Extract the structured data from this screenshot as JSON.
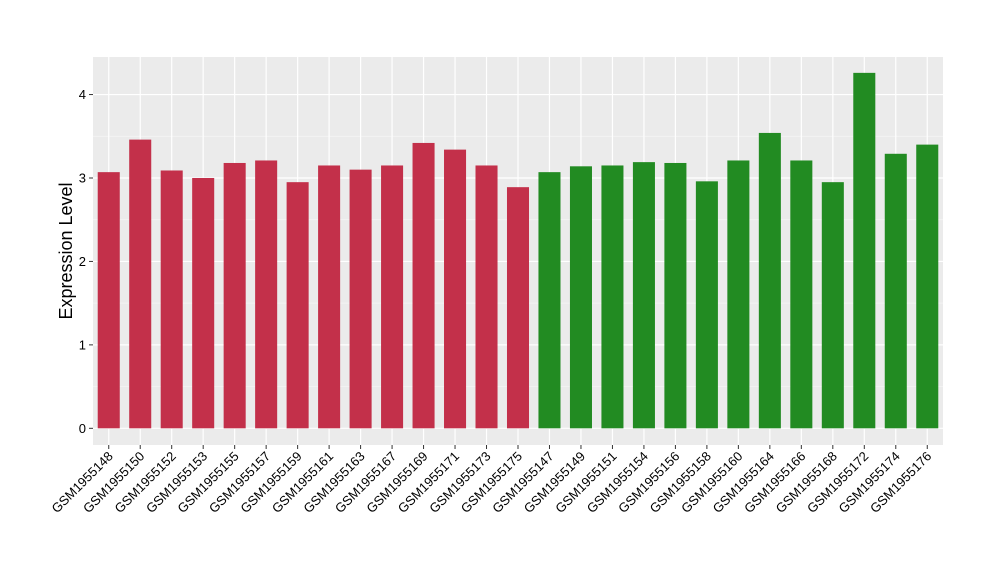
{
  "chart_data": {
    "type": "bar",
    "title": "",
    "xlabel": "",
    "ylabel": "Expression Level",
    "ylim": [
      -0.2,
      4.45
    ],
    "yticks": [
      0,
      1,
      2,
      3,
      4
    ],
    "grid": true,
    "categories": [
      "GSM1955148",
      "GSM1955150",
      "GSM1955152",
      "GSM1955153",
      "GSM1955155",
      "GSM1955157",
      "GSM1955159",
      "GSM1955161",
      "GSM1955163",
      "GSM1955167",
      "GSM1955169",
      "GSM1955171",
      "GSM1955173",
      "GSM1955175",
      "GSM1955147",
      "GSM1955149",
      "GSM1955151",
      "GSM1955154",
      "GSM1955156",
      "GSM1955158",
      "GSM1955160",
      "GSM1955164",
      "GSM1955166",
      "GSM1955168",
      "GSM1955172",
      "GSM1955174",
      "GSM1955176"
    ],
    "values": [
      3.07,
      3.46,
      3.09,
      3.0,
      3.18,
      3.21,
      2.95,
      3.15,
      3.1,
      3.15,
      3.42,
      3.34,
      3.15,
      2.89,
      3.07,
      3.14,
      3.15,
      3.19,
      3.18,
      2.96,
      3.21,
      3.54,
      3.21,
      2.95,
      4.26,
      3.29,
      3.4
    ],
    "groups": [
      "red",
      "red",
      "red",
      "red",
      "red",
      "red",
      "red",
      "red",
      "red",
      "red",
      "red",
      "red",
      "red",
      "red",
      "green",
      "green",
      "green",
      "green",
      "green",
      "green",
      "green",
      "green",
      "green",
      "green",
      "green",
      "green",
      "green"
    ]
  },
  "colors": {
    "red": "#C3304A",
    "green": "#228B22",
    "panel_bg": "#EBEBEB",
    "grid_major": "#FFFFFF",
    "grid_minor": "#F5F5F5",
    "axis_text": "#000000"
  }
}
